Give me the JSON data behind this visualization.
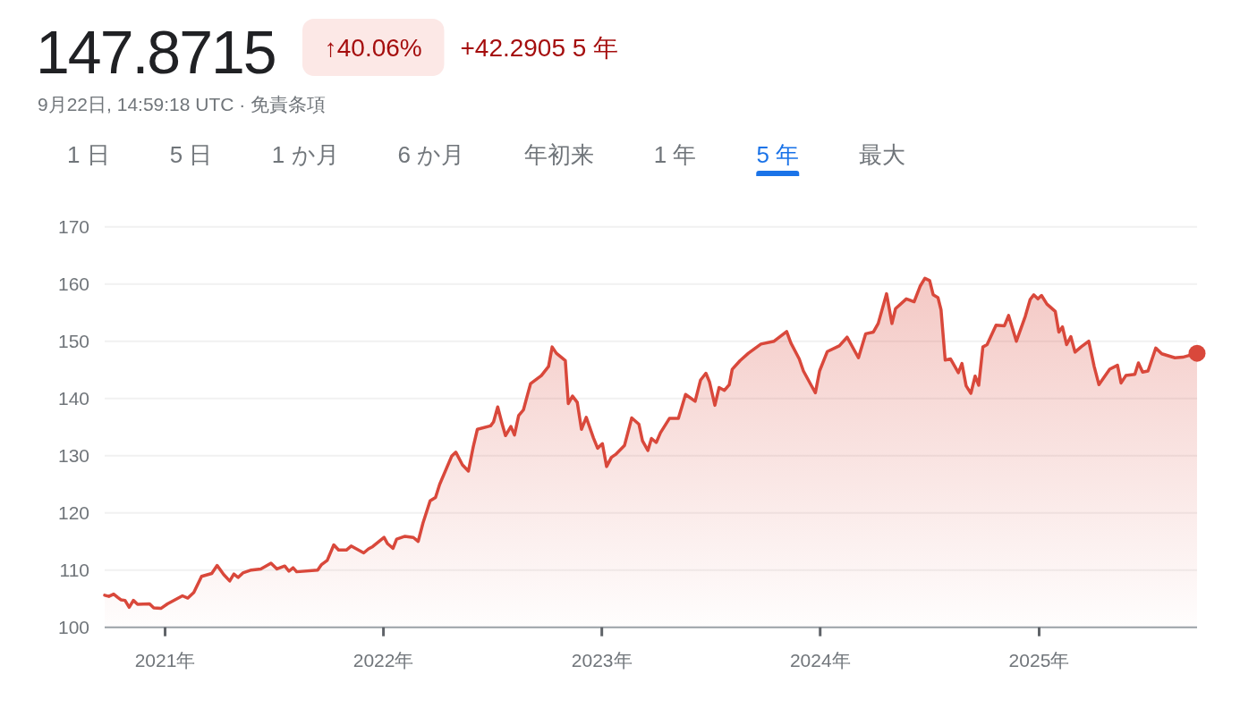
{
  "chart_data": {
    "type": "area",
    "title": "147.8715",
    "subtitle": "9月22日, 14:59:18 UTC · 免責条項",
    "annotations": [
      "↑40.06%",
      "+42.2905 5 年",
      "1 日",
      "5 日",
      "1 か月",
      "6 か月",
      "年初来",
      "1 年",
      "5 年",
      "最大"
    ],
    "x": [
      "2020-09-22",
      "2020-09-29",
      "2020-10-07",
      "2020-10-14",
      "2020-10-19",
      "2020-10-26",
      "2020-11-02",
      "2020-11-09",
      "2020-11-16",
      "2020-12-06",
      "2020-12-13",
      "2020-12-25",
      "2021-01-05",
      "2021-01-30",
      "2021-02-08",
      "2021-02-18",
      "2021-03-03",
      "2021-03-20",
      "2021-03-29",
      "2021-04-09",
      "2021-04-19",
      "2021-04-26",
      "2021-05-03",
      "2021-05-11",
      "2021-05-25",
      "2021-06-10",
      "2021-06-27",
      "2021-07-07",
      "2021-07-20",
      "2021-07-27",
      "2021-08-03",
      "2021-08-09",
      "2021-09-13",
      "2021-09-19",
      "2021-09-29",
      "2021-10-10",
      "2021-10-18",
      "2021-10-31",
      "2021-11-08",
      "2021-11-29",
      "2021-12-07",
      "2021-12-14",
      "2022-01-02",
      "2022-01-08",
      "2022-01-17",
      "2022-01-23",
      "2022-02-06",
      "2022-02-20",
      "2022-02-28",
      "2022-03-08",
      "2022-03-20",
      "2022-03-29",
      "2022-04-05",
      "2022-04-25",
      "2022-05-02",
      "2022-05-13",
      "2022-05-23",
      "2022-05-31",
      "2022-06-07",
      "2022-06-29",
      "2022-07-04",
      "2022-07-11",
      "2022-07-18",
      "2022-07-24",
      "2022-08-02",
      "2022-08-08",
      "2022-08-15",
      "2022-08-23",
      "2022-08-31",
      "2022-09-04",
      "2022-09-22",
      "2022-10-04",
      "2022-10-10",
      "2022-10-17",
      "2022-11-01",
      "2022-11-06",
      "2022-11-13",
      "2022-11-21",
      "2022-11-28",
      "2022-12-06",
      "2022-12-18",
      "2022-12-25",
      "2023-01-02",
      "2023-01-09",
      "2023-01-17",
      "2023-01-24",
      "2023-02-08",
      "2023-02-20",
      "2023-03-04",
      "2023-03-10",
      "2023-03-19",
      "2023-03-25",
      "2023-04-02",
      "2023-04-09",
      "2023-04-24",
      "2023-05-09",
      "2023-05-21",
      "2023-06-06",
      "2023-06-15",
      "2023-06-24",
      "2023-06-30",
      "2023-07-09",
      "2023-07-16",
      "2023-07-25",
      "2023-08-02",
      "2023-08-07",
      "2023-08-20",
      "2023-09-03",
      "2023-09-24",
      "2023-10-16",
      "2023-11-06",
      "2023-11-13",
      "2023-11-27",
      "2023-12-04",
      "2023-12-17",
      "2023-12-24",
      "2023-12-31",
      "2024-01-13",
      "2024-02-02",
      "2024-02-15",
      "2024-03-05",
      "2024-03-17",
      "2024-03-30",
      "2024-04-07",
      "2024-04-21",
      "2024-04-30",
      "2024-05-06",
      "2024-05-24",
      "2024-06-06",
      "2024-06-16",
      "2024-06-24",
      "2024-07-02",
      "2024-07-08",
      "2024-07-16",
      "2024-07-21",
      "2024-07-28",
      "2024-08-06",
      "2024-08-19",
      "2024-08-25",
      "2024-09-01",
      "2024-09-09",
      "2024-09-16",
      "2024-09-22",
      "2024-09-29",
      "2024-10-06",
      "2024-10-21",
      "2024-11-04",
      "2024-11-11",
      "2024-11-24",
      "2024-12-09",
      "2024-12-17",
      "2024-12-23",
      "2024-12-30",
      "2025-01-05",
      "2025-01-14",
      "2025-01-28",
      "2025-02-03",
      "2025-02-09",
      "2025-02-16",
      "2025-02-23",
      "2025-03-02",
      "2025-03-12",
      "2025-03-25",
      "2025-04-03",
      "2025-04-11",
      "2025-04-29",
      "2025-05-12",
      "2025-05-18",
      "2025-05-26",
      "2025-06-10",
      "2025-06-16",
      "2025-06-23",
      "2025-07-02",
      "2025-07-15",
      "2025-07-25",
      "2025-08-16",
      "2025-08-29",
      "2025-09-22"
    ],
    "series": [
      {
        "color": "#d9483b",
        "values": [
          105.6,
          105.4,
          105.8,
          105.2,
          104.8,
          104.7,
          103.5,
          104.7,
          104.0,
          104.1,
          103.4,
          103.3,
          104.1,
          105.5,
          105.1,
          106.1,
          108.9,
          109.4,
          110.8,
          109.2,
          108.1,
          109.3,
          108.7,
          109.5,
          110.0,
          110.2,
          111.2,
          110.2,
          110.7,
          109.8,
          110.4,
          109.7,
          110.0,
          110.9,
          111.7,
          114.4,
          113.5,
          113.5,
          114.2,
          113.0,
          113.7,
          114.1,
          115.7,
          114.6,
          113.8,
          115.4,
          115.9,
          115.7,
          115.0,
          118.2,
          122.1,
          122.7,
          125.0,
          129.9,
          130.6,
          128.4,
          127.3,
          131.5,
          134.6,
          135.2,
          135.9,
          138.5,
          135.7,
          133.5,
          135.1,
          133.6,
          137.0,
          138.0,
          141.1,
          142.6,
          144.0,
          145.6,
          149.0,
          147.9,
          146.6,
          139.1,
          140.4,
          139.3,
          134.6,
          136.7,
          133.1,
          131.3,
          132.1,
          128.1,
          129.7,
          130.2,
          131.8,
          136.6,
          135.5,
          132.6,
          130.9,
          133.0,
          132.3,
          134.0,
          136.5,
          136.5,
          140.7,
          139.5,
          143.2,
          144.4,
          142.9,
          138.8,
          141.9,
          141.4,
          142.4,
          145.1,
          146.6,
          147.9,
          149.5,
          150.0,
          151.7,
          149.7,
          146.9,
          144.8,
          142.3,
          141.0,
          144.8,
          148.2,
          149.2,
          150.7,
          147.1,
          151.3,
          151.6,
          153.1,
          158.3,
          153.1,
          155.7,
          157.4,
          156.9,
          159.6,
          161.0,
          160.6,
          158.1,
          157.6,
          155.5,
          146.7,
          146.9,
          144.5,
          146.1,
          142.2,
          140.9,
          143.9,
          142.3,
          149.0,
          149.4,
          152.8,
          152.7,
          154.5,
          150.0,
          154.4,
          157.3,
          158.1,
          157.4,
          158.0,
          156.5,
          155.2,
          151.6,
          152.5,
          149.4,
          150.8,
          148.1,
          149.0,
          150.0,
          145.6,
          142.4,
          145.1,
          145.8,
          142.7,
          144.0,
          144.2,
          146.2,
          144.6,
          144.8,
          148.8,
          147.8,
          147.1,
          147.2,
          147.9
        ]
      },
      {
        "type": "scatter",
        "color": "#d9483b",
        "x": [
          "2025-09-22"
        ],
        "values": [
          147.9
        ]
      }
    ],
    "xlim": [
      "2020-09-22",
      "2025-09-22"
    ],
    "xticks": [
      {
        "value": "2021-01-01",
        "label": "2021年"
      },
      {
        "value": "2022-01-01",
        "label": "2022年"
      },
      {
        "value": "2023-01-01",
        "label": "2023年"
      },
      {
        "value": "2024-01-01",
        "label": "2024年"
      },
      {
        "value": "2025-01-01",
        "label": "2025年"
      }
    ],
    "ylim": [
      100,
      170
    ],
    "yticks": [
      100,
      110,
      120,
      130,
      140,
      150,
      160,
      170
    ],
    "grid": "y"
  }
}
